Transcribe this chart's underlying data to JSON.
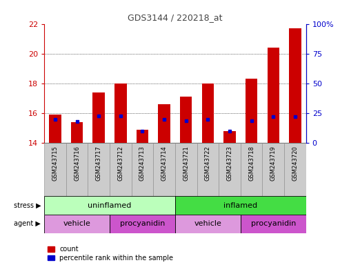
{
  "title": "GDS3144 / 220218_at",
  "samples": [
    "GSM243715",
    "GSM243716",
    "GSM243717",
    "GSM243712",
    "GSM243713",
    "GSM243714",
    "GSM243721",
    "GSM243722",
    "GSM243723",
    "GSM243718",
    "GSM243719",
    "GSM243720"
  ],
  "count_values": [
    15.9,
    15.4,
    17.4,
    18.0,
    14.9,
    16.6,
    17.1,
    18.0,
    14.8,
    18.3,
    20.4,
    21.7
  ],
  "percentile_values": [
    20,
    18,
    23,
    23,
    10,
    20,
    19,
    20,
    10,
    19,
    22,
    22
  ],
  "ylim_left": [
    14,
    22
  ],
  "ylim_right": [
    0,
    100
  ],
  "yticks_left": [
    14,
    16,
    18,
    20,
    22
  ],
  "yticks_right": [
    0,
    25,
    50,
    75,
    100
  ],
  "ytick_right_labels": [
    "0",
    "25",
    "50",
    "75",
    "100%"
  ],
  "bar_color": "#cc0000",
  "pct_color": "#0000cc",
  "stress_uninflamed_color": "#bbffbb",
  "stress_inflamed_color": "#44dd44",
  "agent_vehicle_color": "#dd99dd",
  "agent_procyanidin_color": "#cc55cc",
  "stress_groups": [
    {
      "label": "uninflamed",
      "start": 0,
      "end": 6
    },
    {
      "label": "inflamed",
      "start": 6,
      "end": 12
    }
  ],
  "agent_groups": [
    {
      "label": "vehicle",
      "start": 0,
      "end": 3,
      "type": "vehicle"
    },
    {
      "label": "procyanidin",
      "start": 3,
      "end": 6,
      "type": "procyanidin"
    },
    {
      "label": "vehicle",
      "start": 6,
      "end": 9,
      "type": "vehicle"
    },
    {
      "label": "procyanidin",
      "start": 9,
      "end": 12,
      "type": "procyanidin"
    }
  ],
  "xlabel_stress": "stress",
  "xlabel_agent": "agent",
  "legend_count": "count",
  "legend_pct": "percentile rank within the sample",
  "bar_width": 0.55,
  "left_axis_color": "#cc0000",
  "right_axis_color": "#0000cc",
  "title_color": "#444444",
  "xticklabel_bg": "#cccccc"
}
